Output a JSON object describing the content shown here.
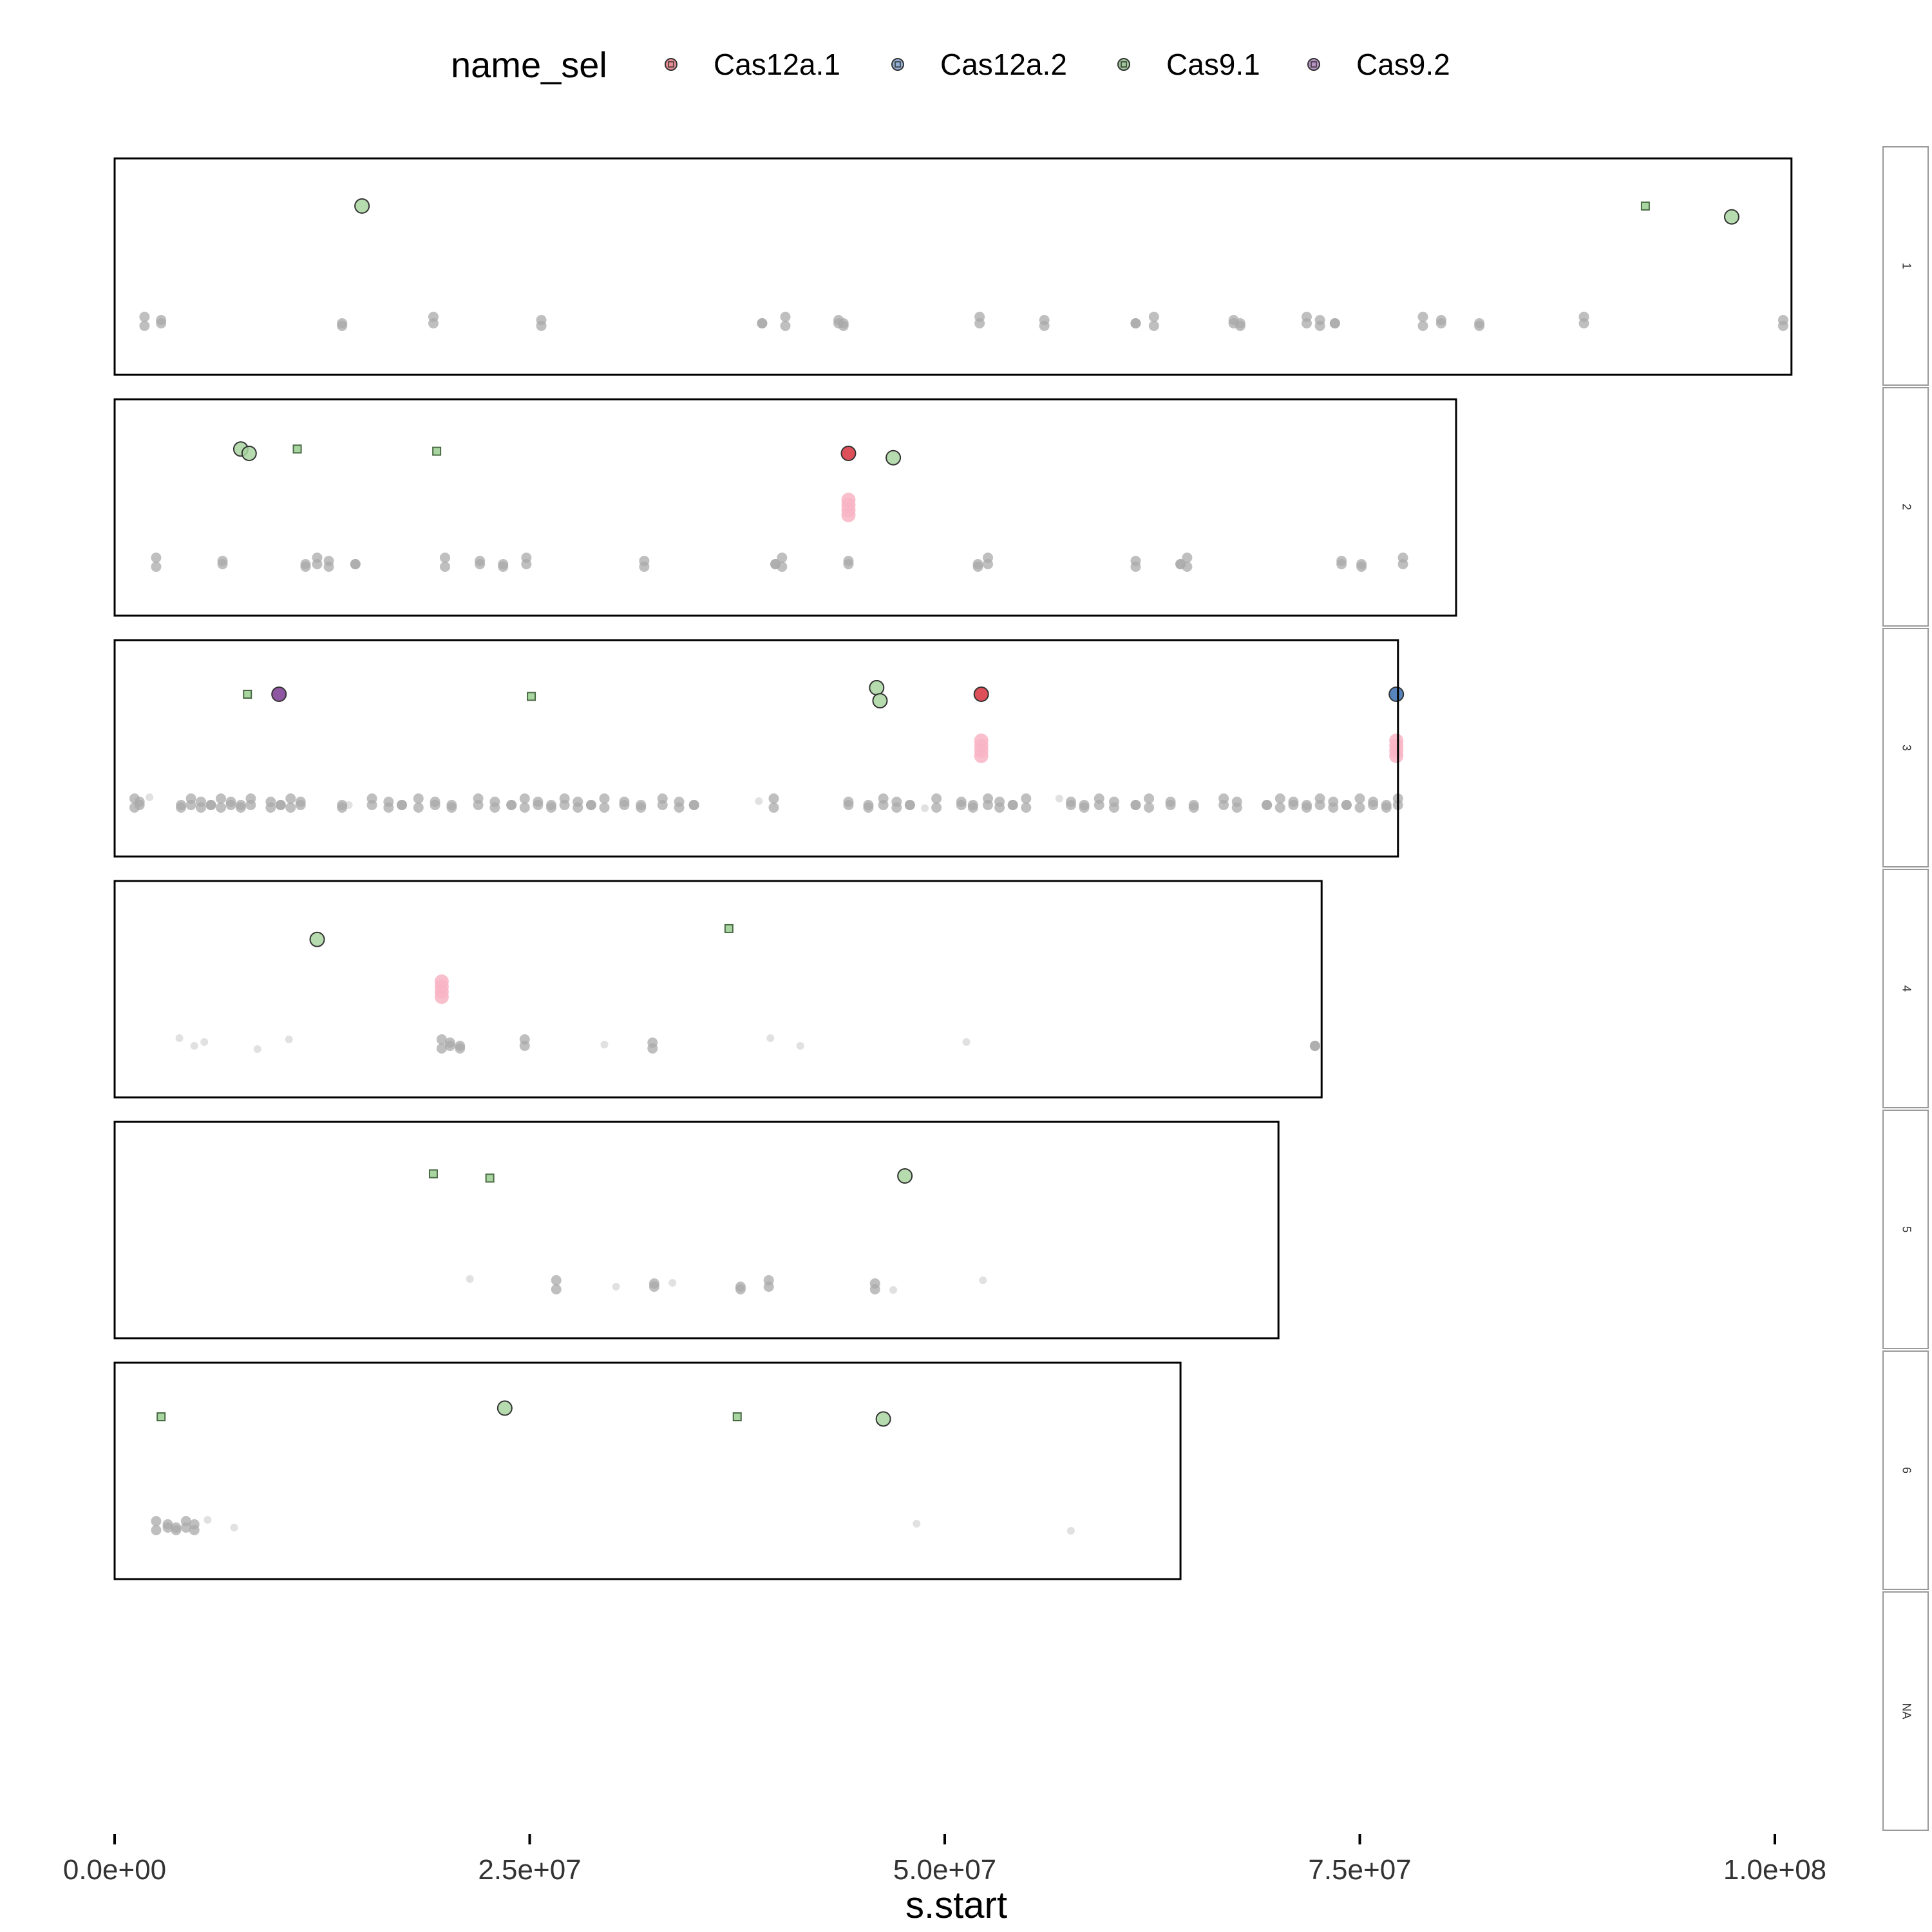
{
  "chart_data": {
    "type": "scatter",
    "xlabel": "s.start",
    "xlim": [
      0,
      106000000
    ],
    "x_ticks": [
      0,
      25000000,
      50000000,
      75000000,
      100000000
    ],
    "x_tick_labels": [
      "0.0e+00",
      "2.5e+07",
      "5.0e+07",
      "7.5e+07",
      "1.0e+08"
    ],
    "legend": {
      "title": "name_sel",
      "position": "top",
      "entries": [
        {
          "name": "Cas12a.1",
          "color": "#d7303c"
        },
        {
          "name": "Cas12a.2",
          "color": "#3a6fb0"
        },
        {
          "name": "Cas9.1",
          "color": "#4f9a45"
        },
        {
          "name": "Cas9.2",
          "color": "#7b3a92"
        }
      ]
    },
    "colors": {
      "background_points": "#a9a9a9",
      "faint_points": "#d9d9d9",
      "pink_points": "#f8b4c4",
      "cas9_fill": "#a8d5a0",
      "panel_border": "#000000",
      "strip_border": "#999999"
    },
    "panels": [
      {
        "label": "1",
        "x_max": 101000000,
        "highlights": [
          {
            "x": 14900000,
            "y": 0.78,
            "series": "Cas9.1",
            "shape": "circle"
          },
          {
            "x": 92200000,
            "y": 0.78,
            "series": "Cas9.1",
            "shape": "square"
          },
          {
            "x": 97400000,
            "y": 0.73,
            "series": "Cas9.1",
            "shape": "circle"
          }
        ],
        "background": [
          1800000,
          2800000,
          13700000,
          19200000,
          25700000,
          39000000,
          40400000,
          43600000,
          43900000,
          52100000,
          56000000,
          61500000,
          62600000,
          67400000,
          67800000,
          71800000,
          72600000,
          73500000,
          78800000,
          79900000,
          82200000,
          88500000,
          100500000
        ],
        "faint": [],
        "pink": []
      },
      {
        "label": "2",
        "x_max": 80800000,
        "highlights": [
          {
            "x": 7600000,
            "y": 0.77,
            "series": "Cas9.1",
            "shape": "circle"
          },
          {
            "x": 8100000,
            "y": 0.75,
            "series": "Cas9.1",
            "shape": "circle"
          },
          {
            "x": 11000000,
            "y": 0.77,
            "series": "Cas9.1",
            "shape": "square"
          },
          {
            "x": 19400000,
            "y": 0.76,
            "series": "Cas9.1",
            "shape": "square"
          },
          {
            "x": 44200000,
            "y": 0.75,
            "series": "Cas12a.1",
            "shape": "circle"
          },
          {
            "x": 46900000,
            "y": 0.73,
            "series": "Cas9.1",
            "shape": "circle"
          }
        ],
        "background": [
          2500000,
          6500000,
          11500000,
          12200000,
          12900000,
          14500000,
          19900000,
          22000000,
          23400000,
          24800000,
          31900000,
          39800000,
          40200000,
          44200000,
          52000000,
          52600000,
          61500000,
          64200000,
          64600000,
          73900000,
          75100000,
          77600000
        ],
        "faint": [],
        "pink": [
          44200000
        ]
      },
      {
        "label": "3",
        "x_max": 77300000,
        "highlights": [
          {
            "x": 8000000,
            "y": 0.75,
            "series": "Cas9.1",
            "shape": "square"
          },
          {
            "x": 9900000,
            "y": 0.75,
            "series": "Cas9.2",
            "shape": "circle"
          },
          {
            "x": 25100000,
            "y": 0.74,
            "series": "Cas9.1",
            "shape": "square"
          },
          {
            "x": 45900000,
            "y": 0.78,
            "series": "Cas9.1",
            "shape": "circle"
          },
          {
            "x": 46100000,
            "y": 0.72,
            "series": "Cas9.1",
            "shape": "circle"
          },
          {
            "x": 52200000,
            "y": 0.75,
            "series": "Cas12a.1",
            "shape": "circle"
          },
          {
            "x": 77200000,
            "y": 0.75,
            "series": "Cas12a.2",
            "shape": "circle"
          }
        ],
        "background": [
          1200000,
          1500000,
          4000000,
          4600000,
          5200000,
          5800000,
          6400000,
          7000000,
          7600000,
          8200000,
          9400000,
          10000000,
          10600000,
          11200000,
          13700000,
          15500000,
          16500000,
          17300000,
          18300000,
          19300000,
          20300000,
          21900000,
          22900000,
          23900000,
          24700000,
          25500000,
          26300000,
          27100000,
          27900000,
          28700000,
          29500000,
          30700000,
          31700000,
          33000000,
          34000000,
          34900000,
          39700000,
          44200000,
          45400000,
          46300000,
          47100000,
          47900000,
          49500000,
          51000000,
          51700000,
          52600000,
          53300000,
          54100000,
          54900000,
          57600000,
          58400000,
          59300000,
          60200000,
          61500000,
          62300000,
          63600000,
          65000000,
          66800000,
          67600000,
          69400000,
          70200000,
          71000000,
          71800000,
          72600000,
          73400000,
          74200000,
          75000000,
          75800000,
          76600000,
          77300000
        ],
        "faint": [
          2100000,
          14100000,
          38800000,
          48800000,
          56900000
        ],
        "pink": [
          52200000,
          77200000
        ]
      },
      {
        "label": "4",
        "x_max": 72700000,
        "highlights": [
          {
            "x": 12200000,
            "y": 0.73,
            "series": "Cas9.1",
            "shape": "circle"
          },
          {
            "x": 37000000,
            "y": 0.78,
            "series": "Cas9.1",
            "shape": "square"
          }
        ],
        "background": [
          19700000,
          20200000,
          20800000,
          24700000,
          32400000,
          72300000
        ],
        "faint": [
          3900000,
          4800000,
          5400000,
          8600000,
          10500000,
          29500000,
          39500000,
          41300000,
          51300000
        ],
        "pink": [
          19700000
        ]
      },
      {
        "label": "5",
        "x_max": 70100000,
        "highlights": [
          {
            "x": 19200000,
            "y": 0.76,
            "series": "Cas9.1",
            "shape": "square"
          },
          {
            "x": 22600000,
            "y": 0.74,
            "series": "Cas9.1",
            "shape": "square"
          },
          {
            "x": 47600000,
            "y": 0.75,
            "series": "Cas9.1",
            "shape": "circle"
          }
        ],
        "background": [
          26600000,
          32500000,
          37700000,
          39400000,
          45800000
        ],
        "faint": [
          21400000,
          30200000,
          33600000,
          46900000,
          52300000
        ],
        "pink": []
      },
      {
        "label": "6",
        "x_max": 64200000,
        "highlights": [
          {
            "x": 2800000,
            "y": 0.75,
            "series": "Cas9.1",
            "shape": "square"
          },
          {
            "x": 23500000,
            "y": 0.79,
            "series": "Cas9.1",
            "shape": "circle"
          },
          {
            "x": 37500000,
            "y": 0.75,
            "series": "Cas9.1",
            "shape": "square"
          },
          {
            "x": 46300000,
            "y": 0.74,
            "series": "Cas9.1",
            "shape": "circle"
          }
        ],
        "background": [
          2500000,
          3200000,
          3700000,
          4300000,
          4800000
        ],
        "faint": [
          5600000,
          7200000,
          48300000,
          57600000
        ],
        "pink": []
      },
      {
        "label": "NA",
        "x_max": null,
        "highlights": [],
        "background": [],
        "faint": [],
        "pink": []
      }
    ]
  }
}
